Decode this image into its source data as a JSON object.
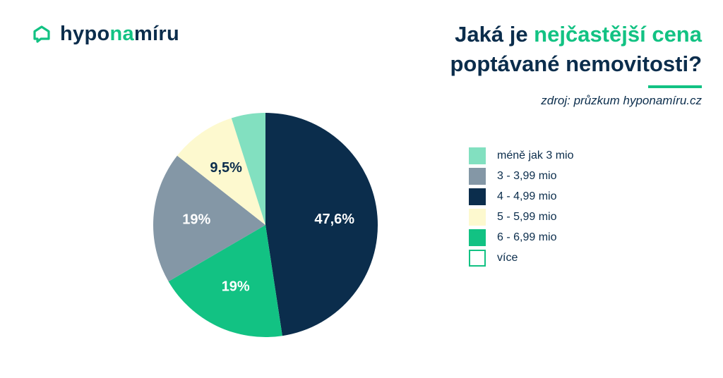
{
  "brand": {
    "name_part1": "hypo",
    "name_part2": "na",
    "name_part3": "míru"
  },
  "title": {
    "line1_prefix": "Jaká je ",
    "line1_accent": "nejčastější cena",
    "line2": "poptávané nemovitosti?"
  },
  "source": "zdroj: průzkum hyponamíru.cz",
  "colors": {
    "navy": "#0b2d4c",
    "green": "#12c283"
  },
  "chart_data": {
    "type": "pie",
    "title": "Jaká je nejčastější cena poptávané nemovitosti?",
    "legend_position": "right",
    "start_angle_deg": 0,
    "direction": "clockwise",
    "slices": [
      {
        "label": "4 - 4,99 mio",
        "value": 47.6,
        "display": "47,6%",
        "color": "#0b2d4c",
        "text_color": "#ffffff"
      },
      {
        "label": "6 - 6,99 mio",
        "value": 19.0,
        "display": "19%",
        "color": "#12c283",
        "text_color": "#ffffff"
      },
      {
        "label": "3 - 3,99 mio",
        "value": 19.0,
        "display": "19%",
        "color": "#8497a6",
        "text_color": "#ffffff"
      },
      {
        "label": "5 - 5,99 mio",
        "value": 9.5,
        "display": "9,5%",
        "color": "#fdf9cf",
        "text_color": "#0b2d4c"
      },
      {
        "label": "méně jak 3 mio",
        "value": 4.9,
        "display": "",
        "color": "#82e0c0",
        "text_color": "#0b2d4c"
      }
    ],
    "legend": [
      {
        "label": "méně jak 3 mio",
        "color": "#82e0c0",
        "outline": false
      },
      {
        "label": "3 - 3,99 mio",
        "color": "#8497a6",
        "outline": false
      },
      {
        "label": "4 - 4,99 mio",
        "color": "#0b2d4c",
        "outline": false
      },
      {
        "label": "5 - 5,99 mio",
        "color": "#fdf9cf",
        "outline": false
      },
      {
        "label": "6 - 6,99 mio",
        "color": "#12c283",
        "outline": false
      },
      {
        "label": "více",
        "color": "#ffffff",
        "outline": true
      }
    ]
  }
}
